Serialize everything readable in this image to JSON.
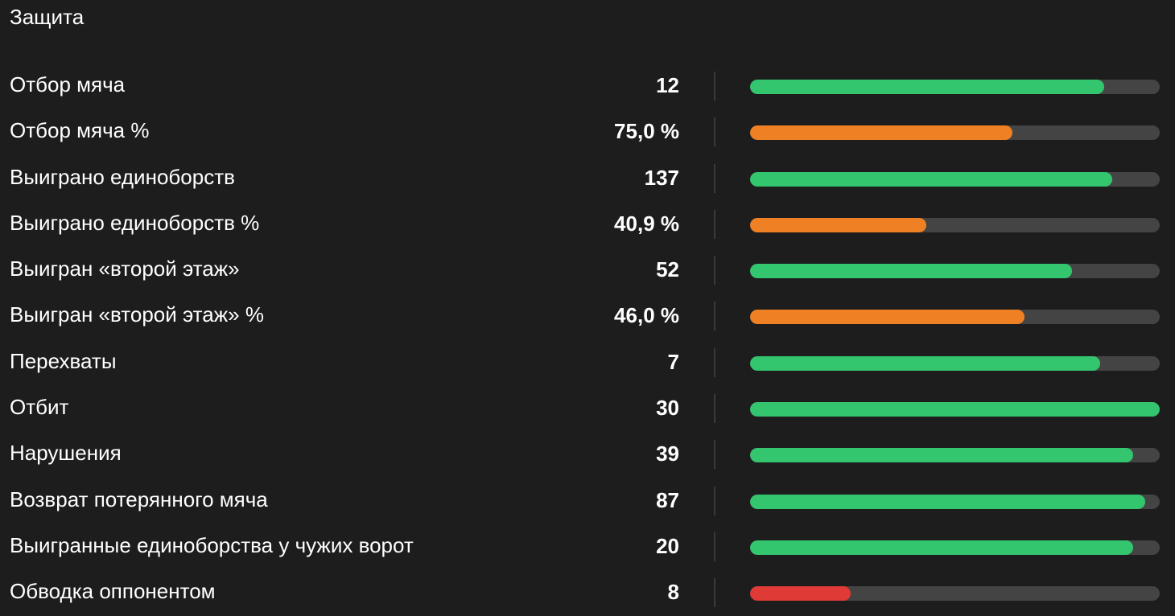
{
  "section": {
    "title": "Защита"
  },
  "colors": {
    "background": "#1d1d1d",
    "track": "#444444",
    "good": "#33c66e",
    "average": "#ef8124",
    "poor": "#df3a35"
  },
  "stats": [
    {
      "label": "Отбор мяча",
      "value": "12",
      "percentile": 0.865,
      "level": "good"
    },
    {
      "label": "Отбор мяча %",
      "value": "75,0 %",
      "percentile": 0.64,
      "level": "average"
    },
    {
      "label": "Выиграно единоборств",
      "value": "137",
      "percentile": 0.885,
      "level": "good"
    },
    {
      "label": "Выиграно единоборств %",
      "value": "40,9 %",
      "percentile": 0.43,
      "level": "average"
    },
    {
      "label": "Выигран «второй этаж»",
      "value": "52",
      "percentile": 0.785,
      "level": "good"
    },
    {
      "label": "Выигран «второй этаж» %",
      "value": "46,0 %",
      "percentile": 0.67,
      "level": "average"
    },
    {
      "label": "Перехваты",
      "value": "7",
      "percentile": 0.855,
      "level": "good"
    },
    {
      "label": "Отбит",
      "value": "30",
      "percentile": 1.0,
      "level": "good"
    },
    {
      "label": "Нарушения",
      "value": "39",
      "percentile": 0.935,
      "level": "good"
    },
    {
      "label": "Возврат потерянного мяча",
      "value": "87",
      "percentile": 0.965,
      "level": "good"
    },
    {
      "label": "Выигранные единоборства у чужих ворот",
      "value": "20",
      "percentile": 0.935,
      "level": "good"
    },
    {
      "label": "Обводка оппонентом",
      "value": "8",
      "percentile": 0.245,
      "level": "poor"
    }
  ]
}
